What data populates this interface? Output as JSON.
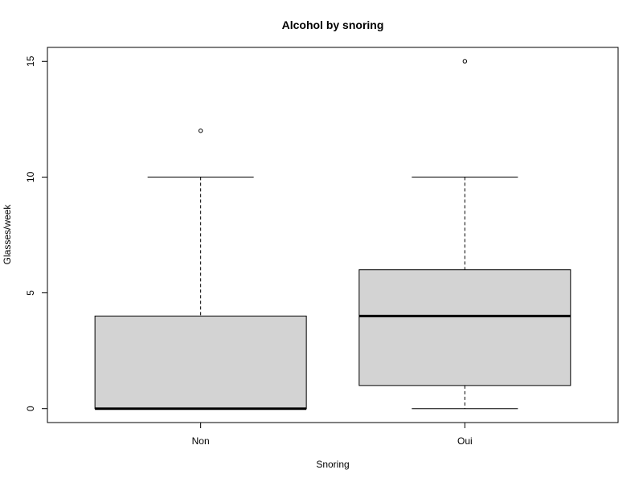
{
  "chart_data": {
    "type": "boxplot",
    "title": "Alcohol by snoring",
    "xlabel": "Snoring",
    "ylabel": "Glasses/week",
    "ylim": [
      -0.6,
      15.6
    ],
    "yticks": [
      0,
      5,
      10,
      15
    ],
    "ytick_labels": [
      "0",
      "5",
      "10",
      "15"
    ],
    "categories": [
      "Non",
      "Oui"
    ],
    "box_fill": "#d3d3d3",
    "boxes": [
      {
        "category": "Non",
        "whisker_low": 0,
        "q1": 0,
        "median": 0,
        "q3": 4,
        "whisker_high": 10,
        "outliers": [
          12
        ]
      },
      {
        "category": "Oui",
        "whisker_low": 0,
        "q1": 1,
        "median": 4,
        "q3": 6,
        "whisker_high": 10,
        "outliers": [
          15
        ]
      }
    ],
    "grid": false,
    "legend": "none"
  }
}
